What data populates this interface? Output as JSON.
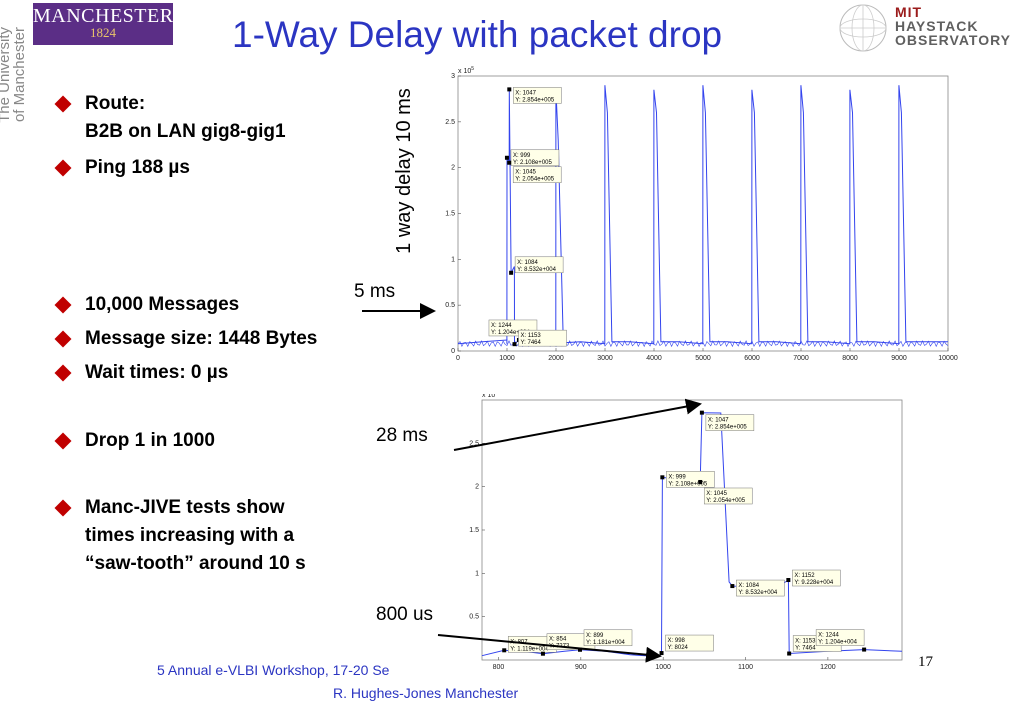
{
  "header": {
    "logo_name": "MANCHESTER",
    "logo_year": "1824",
    "university_line1": "The University",
    "university_line2": "of Manchester",
    "title": "1-Way Delay with packet drop",
    "mit_line1": "MIT",
    "mit_line2": "HAYSTACK",
    "mit_line3": "OBSERVATORY"
  },
  "bullets": [
    "Route:\nB2B on LAN gig8-gig1",
    "Ping 188 µs",
    "10,000 Messages",
    "Message size: 1448 Bytes",
    "Wait times: 0 µs",
    "Drop 1 in 1000",
    "Manc-JIVE tests show\ntimes increasing with a\n“saw-tooth” around 10 s"
  ],
  "annotations": {
    "ylabel_rotated": "1 way delay 10 ms",
    "five_ms": "5 ms",
    "twentyeight_ms": "28 ms",
    "eighthundred_us": "800 us"
  },
  "footer": {
    "line1": "5 Annual e-VLBI Workshop, 17-20 Se",
    "line2": "R. Hughes-Jones  Manchester",
    "page": "17"
  },
  "colors": {
    "title": "#2b35c2",
    "bullet": "#c00000",
    "trace": "#3344ee",
    "purple": "#5b2e86"
  },
  "chart_data": [
    {
      "type": "line",
      "exponent": "x 10^5",
      "xlim": [
        0,
        10000
      ],
      "ylim": [
        0,
        3
      ],
      "xticks": [
        "0",
        "1000",
        "2000",
        "3000",
        "4000",
        "5000",
        "6000",
        "7000",
        "8000",
        "9000",
        "10000"
      ],
      "yticks": [
        "0",
        "0.5",
        "1",
        "1.5",
        "2",
        "2.5",
        "3"
      ],
      "spike_positions": [
        1000,
        2000,
        3000,
        4000,
        5000,
        6000,
        7000,
        8000,
        9000
      ],
      "baseline": 0.08,
      "spike_peak": 2.854,
      "series": [
        {
          "x": [
            0,
            500,
            997,
            998,
            999,
            1045,
            1047,
            1084,
            1152,
            1153,
            1244,
            1500,
            1995,
            1998,
            2045,
            2150,
            2500,
            2995,
            2998,
            3050,
            3140,
            3500,
            3995,
            3998,
            4050,
            4140,
            4500,
            4995,
            4998,
            5050,
            5140,
            5500,
            5995,
            5998,
            6050,
            6140,
            6500,
            6995,
            6998,
            7050,
            7140,
            7500,
            7995,
            7998,
            8050,
            8140,
            8500,
            8995,
            8998,
            9050,
            9140,
            9500,
            10000
          ],
          "y": [
            0.08,
            0.1,
            0.12,
            0.08,
            2.108,
            2.054,
            2.854,
            0.853,
            0.922,
            0.075,
            0.12,
            0.1,
            0.08,
            2.85,
            2.3,
            0.09,
            0.1,
            0.08,
            2.9,
            2.6,
            0.1,
            0.1,
            0.08,
            2.85,
            2.6,
            0.1,
            0.1,
            0.08,
            2.9,
            2.6,
            0.1,
            0.1,
            0.08,
            2.85,
            2.6,
            0.1,
            0.1,
            0.08,
            2.9,
            2.6,
            0.1,
            0.1,
            0.08,
            2.85,
            2.6,
            0.1,
            0.1,
            0.08,
            2.9,
            2.6,
            0.1,
            0.1,
            0.1
          ]
        }
      ],
      "datatips": [
        {
          "x": 1047,
          "y": 285400,
          "lines": [
            "X: 1047",
            "Y: 2.854e+005"
          ]
        },
        {
          "x": 999,
          "y": 210800,
          "lines": [
            "X: 999",
            "Y: 2.108e+005"
          ]
        },
        {
          "x": 1045,
          "y": 205400,
          "lines": [
            "X: 1045",
            "Y: 2.054e+005"
          ]
        },
        {
          "x": 1084,
          "y": 85320,
          "lines": [
            "X: 1084",
            "Y: 8.532e+004"
          ]
        },
        {
          "x": 1244,
          "y": 12040,
          "lines": [
            "X: 1244",
            "Y: 1.204e+004"
          ]
        },
        {
          "x": 1153,
          "y": 7464,
          "lines": [
            "X: 1153",
            "Y: 7464"
          ]
        }
      ]
    },
    {
      "type": "line",
      "exponent": "x 10^5",
      "xlim": [
        780,
        1290
      ],
      "ylim": [
        0,
        3
      ],
      "xticks": [
        "800",
        "900",
        "1000",
        "1100",
        "1200"
      ],
      "yticks": [
        "0.5",
        "1",
        "1.5",
        "2",
        "2.5"
      ],
      "series": [
        {
          "x": [
            780,
            807,
            840,
            854,
            880,
            899,
            930,
            960,
            995,
            998,
            999,
            1005,
            1040,
            1045,
            1047,
            1070,
            1080,
            1084,
            1140,
            1152,
            1153,
            1200,
            1244,
            1290
          ],
          "y": [
            0.05,
            0.112,
            0.09,
            0.073,
            0.1,
            0.118,
            0.1,
            0.06,
            0.04,
            0.08,
            2.108,
            2.1,
            2.02,
            2.054,
            2.854,
            2.85,
            0.9,
            0.853,
            0.85,
            0.922,
            0.075,
            0.1,
            0.12,
            0.1
          ]
        }
      ],
      "datatips": [
        {
          "x": 1047,
          "y": 285400,
          "lines": [
            "X: 1047",
            "Y: 2.854e+005"
          ]
        },
        {
          "x": 999,
          "y": 210800,
          "lines": [
            "X: 999",
            "Y: 2.108e+005"
          ]
        },
        {
          "x": 1045,
          "y": 205400,
          "lines": [
            "X: 1045",
            "Y: 2.054e+005"
          ]
        },
        {
          "x": 1084,
          "y": 85320,
          "lines": [
            "X: 1084",
            "Y: 8.532e+004"
          ]
        },
        {
          "x": 1152,
          "y": 92280,
          "lines": [
            "X: 1152",
            "Y: 9.228e+004"
          ]
        },
        {
          "x": 1153,
          "y": 7464,
          "lines": [
            "X: 1153",
            "Y: 7464"
          ]
        },
        {
          "x": 1244,
          "y": 12040,
          "lines": [
            "X: 1244",
            "Y: 1.204e+004"
          ]
        },
        {
          "x": 998,
          "y": 8024,
          "lines": [
            "X: 998",
            "Y: 8024"
          ]
        },
        {
          "x": 807,
          "y": 11190,
          "lines": [
            "X: 807",
            "Y: 1.119e+004"
          ]
        },
        {
          "x": 854,
          "y": 7273,
          "lines": [
            "X: 854",
            "Y: 7273"
          ]
        },
        {
          "x": 899,
          "y": 11810,
          "lines": [
            "X: 899",
            "Y: 1.181e+004"
          ]
        }
      ]
    }
  ]
}
